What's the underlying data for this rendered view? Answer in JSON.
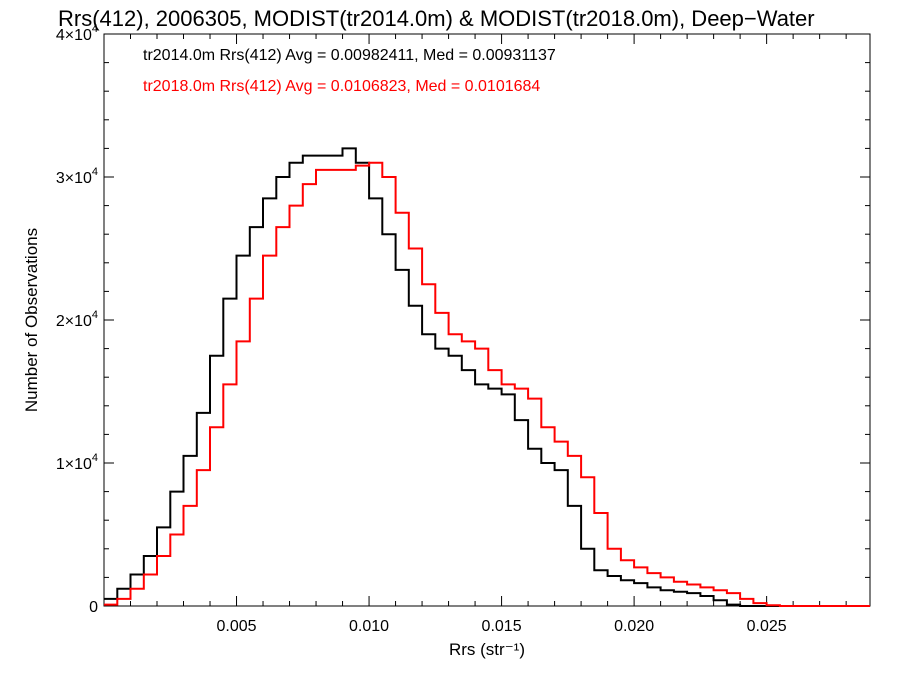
{
  "chart_data": {
    "type": "line",
    "step": true,
    "title": "Rrs(412), 2006305, MODIST(tr2014.0m) & MODIST(tr2018.0m), Deep−Water",
    "xlabel": "Rrs (str⁻¹)",
    "ylabel": "Number of Observations",
    "xlim": [
      0.0,
      0.0289
    ],
    "ylim": [
      0,
      40000
    ],
    "x_ticks": [
      {
        "value": 0.005,
        "label": "0.005"
      },
      {
        "value": 0.01,
        "label": "0.010"
      },
      {
        "value": 0.015,
        "label": "0.015"
      },
      {
        "value": 0.02,
        "label": "0.020"
      },
      {
        "value": 0.025,
        "label": "0.025"
      }
    ],
    "y_ticks": [
      {
        "value": 0,
        "base": "0",
        "exp": ""
      },
      {
        "value": 10000,
        "base": "1×10",
        "exp": "4"
      },
      {
        "value": 20000,
        "base": "2×10",
        "exp": "4"
      },
      {
        "value": 30000,
        "base": "3×10",
        "exp": "4"
      },
      {
        "value": 40000,
        "base": "4×10",
        "exp": "4"
      }
    ],
    "annotations": [
      {
        "text": "tr2014.0m Rrs(412) Avg = 0.00982411, Med = 0.00931137",
        "color": "#000000"
      },
      {
        "text": "tr2018.0m Rrs(412) Avg = 0.0106823, Med = 0.0101684",
        "color": "#ff0000"
      }
    ],
    "series": [
      {
        "color": "#000000",
        "x": [
          0.0,
          0.0005,
          0.001,
          0.0015,
          0.002,
          0.0025,
          0.003,
          0.0035,
          0.004,
          0.0045,
          0.005,
          0.0055,
          0.006,
          0.0065,
          0.007,
          0.0075,
          0.008,
          0.0085,
          0.009,
          0.0095,
          0.01,
          0.0105,
          0.011,
          0.0115,
          0.012,
          0.0125,
          0.013,
          0.0135,
          0.014,
          0.0145,
          0.015,
          0.0155,
          0.016,
          0.0165,
          0.017,
          0.0175,
          0.018,
          0.0185,
          0.019,
          0.0195,
          0.02,
          0.0205,
          0.021,
          0.0215,
          0.022,
          0.0225,
          0.023,
          0.0235,
          0.024,
          0.0245,
          0.025,
          0.0255,
          0.026,
          0.027,
          0.0289
        ],
        "y": [
          500,
          1200,
          2200,
          3500,
          5500,
          8000,
          10500,
          13500,
          17500,
          21500,
          24500,
          26500,
          28500,
          30000,
          31000,
          31500,
          31500,
          31500,
          32000,
          31000,
          28500,
          26000,
          23500,
          21000,
          19000,
          18000,
          17500,
          16500,
          15500,
          15200,
          14800,
          13000,
          11000,
          10000,
          9500,
          7000,
          4000,
          2500,
          2100,
          1800,
          1600,
          1300,
          1100,
          1000,
          900,
          700,
          400,
          100,
          0,
          0,
          0,
          0,
          0,
          0,
          0
        ]
      },
      {
        "color": "#ff0000",
        "x": [
          0.0,
          0.0005,
          0.001,
          0.0015,
          0.002,
          0.0025,
          0.003,
          0.0035,
          0.004,
          0.0045,
          0.005,
          0.0055,
          0.006,
          0.0065,
          0.007,
          0.0075,
          0.008,
          0.0085,
          0.009,
          0.0095,
          0.01,
          0.0105,
          0.011,
          0.0115,
          0.012,
          0.0125,
          0.013,
          0.0135,
          0.014,
          0.0145,
          0.015,
          0.0155,
          0.016,
          0.0165,
          0.017,
          0.0175,
          0.018,
          0.0185,
          0.019,
          0.0195,
          0.02,
          0.0205,
          0.021,
          0.0215,
          0.022,
          0.0225,
          0.023,
          0.0235,
          0.024,
          0.0245,
          0.025,
          0.0255,
          0.026,
          0.027,
          0.0289
        ],
        "y": [
          100,
          500,
          1200,
          2200,
          3500,
          5000,
          7000,
          9500,
          12500,
          15500,
          18500,
          21500,
          24500,
          26500,
          28000,
          29500,
          30500,
          30500,
          30500,
          30800,
          31000,
          30000,
          27500,
          25000,
          22500,
          20500,
          19000,
          18500,
          18000,
          16500,
          15500,
          15200,
          14500,
          12500,
          11500,
          10500,
          9000,
          6500,
          4000,
          3200,
          2700,
          2300,
          2000,
          1700,
          1500,
          1300,
          1100,
          900,
          500,
          200,
          50,
          0,
          0,
          0,
          0
        ]
      }
    ]
  }
}
